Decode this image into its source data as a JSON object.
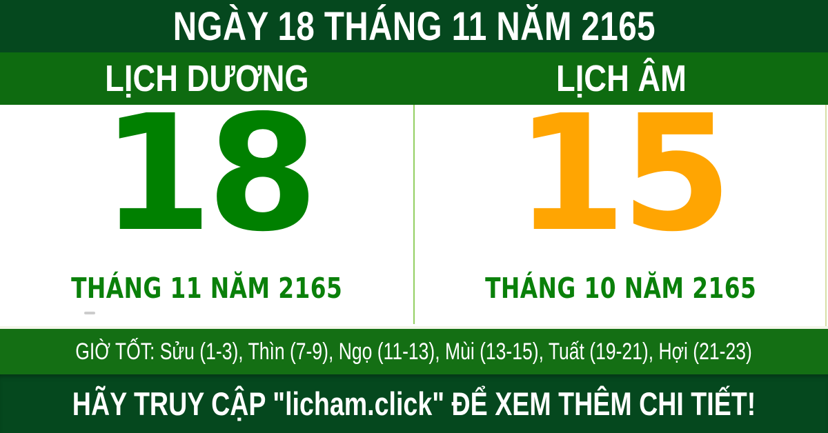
{
  "top_banner": {
    "title": "NGÀY 18 THÁNG 11 NĂM 2165"
  },
  "calendar": {
    "solar": {
      "header": "LỊCH DƯƠNG",
      "day": "18",
      "month_year": "THÁNG 11 NĂM 2165"
    },
    "lunar": {
      "header": "LỊCH ÂM",
      "day": "15",
      "month_year": "THÁNG 10 NĂM 2165"
    }
  },
  "good_hours": {
    "text": "GIỜ TỐT: Sửu (1-3), Thìn (7-9), Ngọ (11-13), Mùi (13-15), Tuất (19-21), Hợi (21-23)"
  },
  "footer": {
    "cta": "HÃY TRUY CẬP \"licham.click\" ĐỂ XEM THÊM CHI TIẾT!"
  },
  "colors": {
    "banner_dark_green": "#05481e",
    "header_band_green": "#0e6b10",
    "hours_band_green": "#146f14",
    "solar_day_green": "#008000",
    "lunar_day_orange": "#ffa502",
    "month_label_green": "#0a800a",
    "divider_light_green": "#93cf63",
    "right_edge_pale_line": "#d6dfa6",
    "text_white": "#ffffff"
  }
}
